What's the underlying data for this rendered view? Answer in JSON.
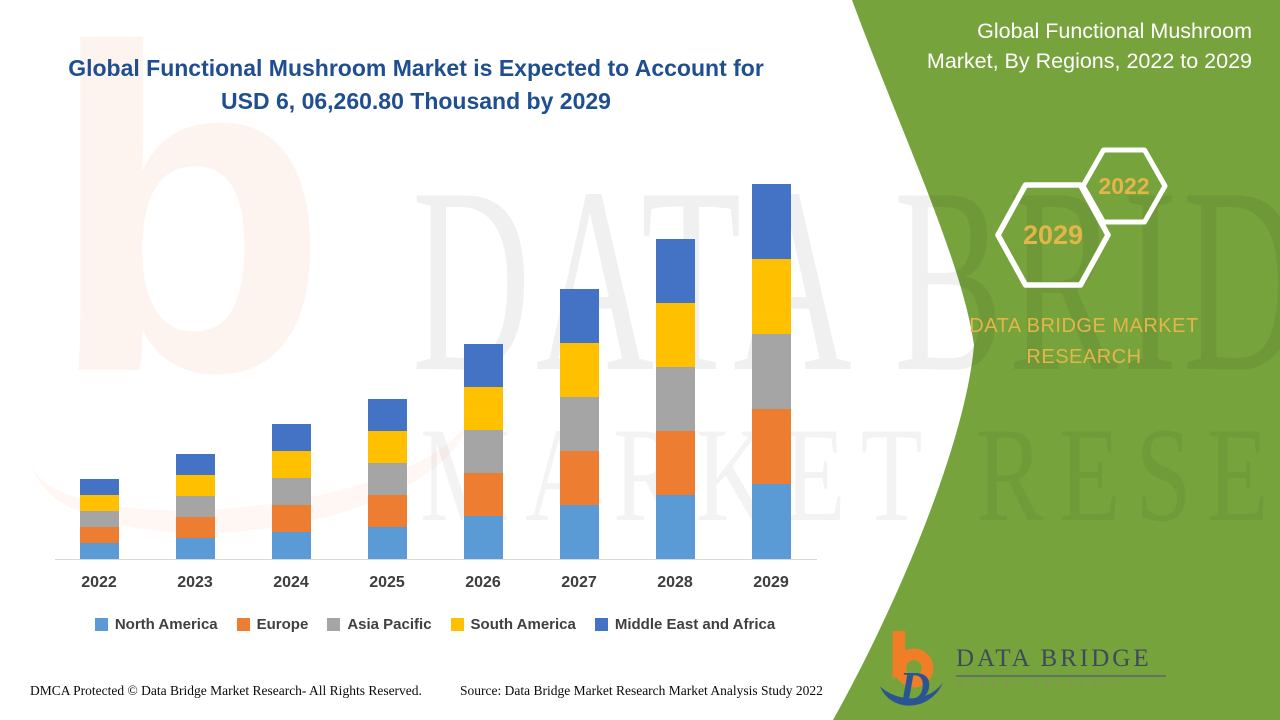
{
  "headline": {
    "line1": "Global Functional Mushroom Market is Expected to Account for",
    "line2": "USD 6, 06,260.80 Thousand by 2029",
    "color": "#1F4E91"
  },
  "chart_data": {
    "type": "bar",
    "stacked": true,
    "categories": [
      "2022",
      "2023",
      "2024",
      "2025",
      "2026",
      "2027",
      "2028",
      "2029"
    ],
    "series": [
      {
        "name": "North America",
        "color": "#5B9BD5",
        "values": [
          16,
          21,
          27,
          32,
          43,
          54,
          64,
          75
        ]
      },
      {
        "name": "Europe",
        "color": "#ED7D31",
        "values": [
          16,
          21,
          27,
          32,
          43,
          54,
          64,
          75
        ]
      },
      {
        "name": "Asia Pacific",
        "color": "#A5A5A5",
        "values": [
          16,
          21,
          27,
          32,
          43,
          54,
          64,
          75
        ]
      },
      {
        "name": "South America",
        "color": "#FFC000",
        "values": [
          16,
          21,
          27,
          32,
          43,
          54,
          64,
          75
        ]
      },
      {
        "name": "Middle East and Africa",
        "color": "#4472C4",
        "values": [
          16,
          21,
          27,
          32,
          43,
          54,
          64,
          75
        ]
      }
    ],
    "title": "Global Functional Mushroom Market, By Regions, 2022 to 2029",
    "xlabel": "",
    "ylabel": "",
    "value_unit": "estimated relative bar height in px (no y-axis shown); 2029 total corresponds to USD 6,06,260.80 Thousand per headline",
    "legend_position": "bottom",
    "grid": false,
    "y_axis_visible": false
  },
  "right_panel": {
    "bg_color": "#76A33C",
    "title": "Global Functional Mushroom Market, By Regions, 2022 to 2029",
    "hexagon_large_label": "2029",
    "hexagon_small_label": "2022",
    "hexagon_label_color": "#E2B64A",
    "brand_line1": "DATA BRIDGE MARKET",
    "brand_line2": "RESEARCH",
    "brand_color": "#E2B64A"
  },
  "logo": {
    "name": "DATA BRIDGE",
    "subtitle": "MARKET RESEARCH"
  },
  "watermark": {
    "glyph": "b",
    "text1": "DATA BRIDGE",
    "text2": "MARKET RESEARCH"
  },
  "footer": {
    "dmca": "DMCA Protected © Data Bridge Market Research- All Rights Reserved.",
    "source": "Source: Data Bridge Market Research Market Analysis Study 2022"
  }
}
